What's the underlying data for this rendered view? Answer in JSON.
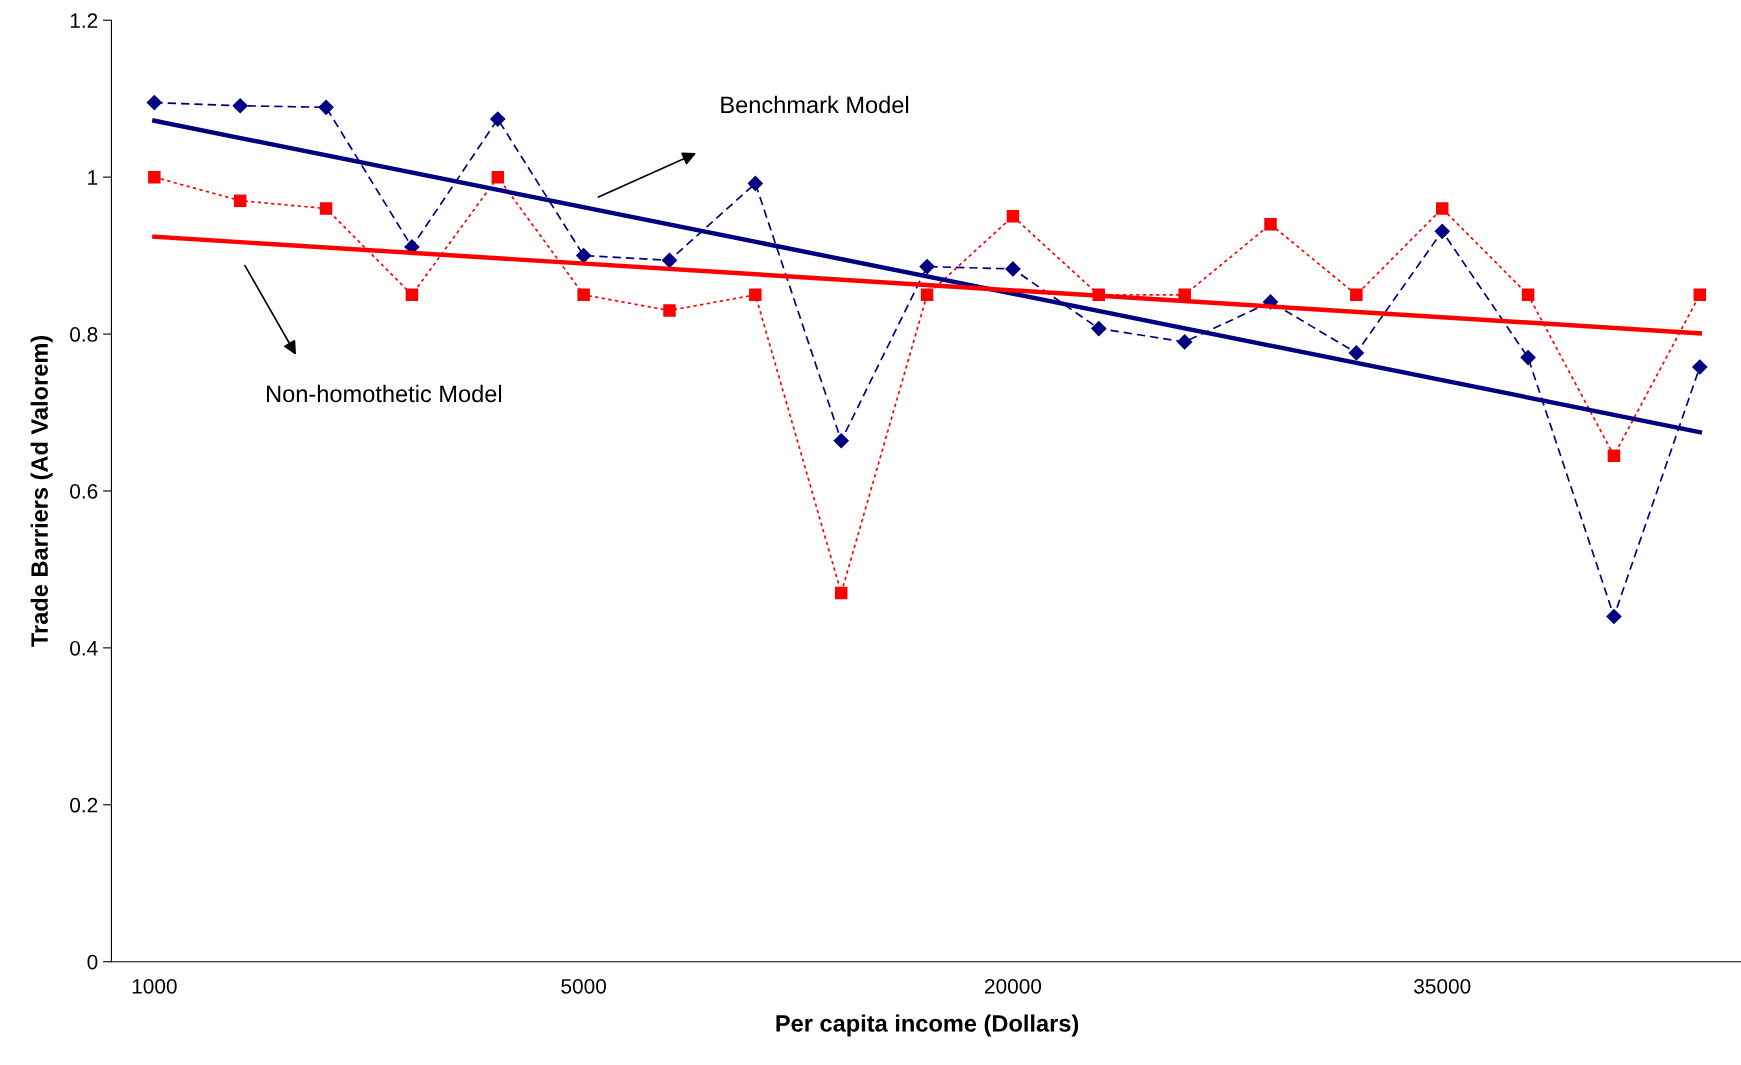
{
  "chart_data": {
    "type": "line",
    "xlabel": "Per capita income (Dollars)",
    "ylabel": "Trade Barriers (Ad Valorem)",
    "categories": [
      "1000",
      null,
      null,
      null,
      null,
      "5000",
      null,
      null,
      null,
      null,
      "20000",
      null,
      null,
      null,
      null,
      "35000",
      null,
      null,
      null
    ],
    "series": [
      {
        "color": "#000080",
        "marker": "diamond",
        "line_style": "dashed",
        "values": [
          1.095,
          1.091,
          1.089,
          0.911,
          1.074,
          0.9,
          0.894,
          0.992,
          0.664,
          0.886,
          0.883,
          0.807,
          0.79,
          0.841,
          0.776,
          0.931,
          0.77,
          0.44,
          0.758
        ]
      },
      {
        "color": "#ff0000",
        "marker": "square",
        "line_style": "dotted",
        "values": [
          1.0,
          0.97,
          0.96,
          0.85,
          1.0,
          0.85,
          0.83,
          0.85,
          0.47,
          0.85,
          0.95,
          0.85,
          0.85,
          0.94,
          0.85,
          0.96,
          0.85,
          0.645,
          0.85
        ]
      },
      {
        "color": "#000080",
        "marker": "none",
        "line_style": "solid",
        "values": [
          1.072,
          null,
          null,
          null,
          null,
          null,
          null,
          null,
          null,
          null,
          null,
          null,
          null,
          null,
          null,
          null,
          null,
          null,
          0.675
        ]
      },
      {
        "color": "#ff0000",
        "marker": "none",
        "line_style": "solid",
        "values": [
          0.924,
          null,
          null,
          null,
          null,
          null,
          null,
          null,
          null,
          null,
          null,
          null,
          null,
          null,
          null,
          null,
          null,
          null,
          0.801
        ]
      }
    ],
    "ylim": [
      0,
      1.2
    ],
    "yticks": [
      0,
      0.2,
      0.4,
      0.6,
      0.8,
      1,
      1.2
    ],
    "grid": false,
    "legend": false,
    "annotations": [
      "Benchmark Model",
      "Non-homothetic Model"
    ]
  }
}
